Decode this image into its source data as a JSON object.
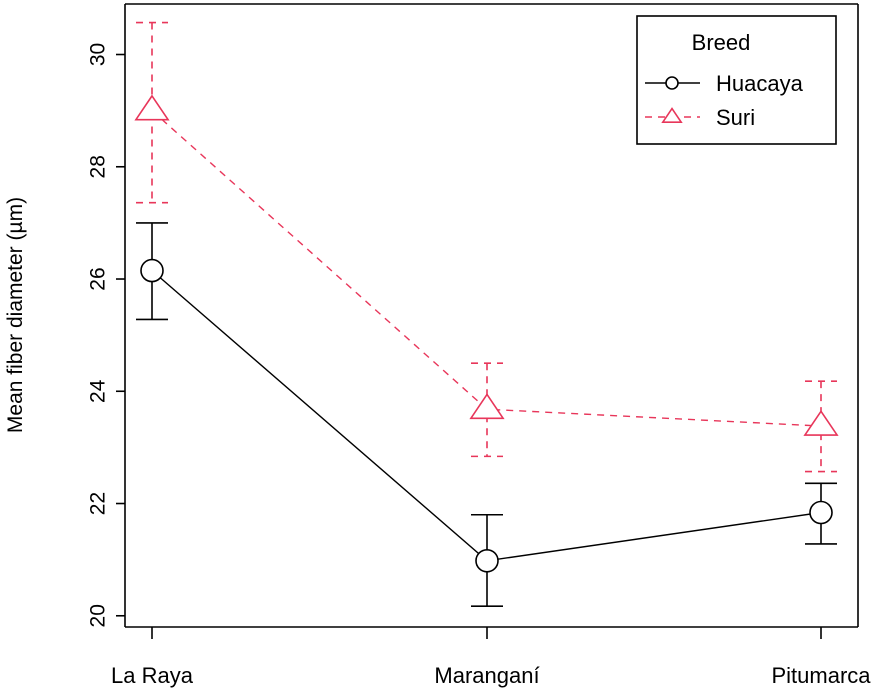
{
  "chart_data": {
    "type": "line",
    "title": "",
    "xlabel": "",
    "ylabel": "Mean fiber diameter (µm)",
    "categories": [
      "La Raya",
      "Maranganí",
      "Pitumarca"
    ],
    "ylim": [
      19.8,
      30.9
    ],
    "yticks": [
      20,
      22,
      24,
      26,
      28,
      30
    ],
    "legend": {
      "title": "Breed",
      "position": "top-right"
    },
    "series": [
      {
        "name": "Huacaya",
        "color": "#000000",
        "line_style": "solid",
        "marker": "circle",
        "values": [
          26.15,
          20.98,
          21.84
        ],
        "lower": [
          25.28,
          20.17,
          21.28
        ],
        "upper": [
          27.0,
          21.8,
          22.36
        ]
      },
      {
        "name": "Suri",
        "color": "#e8365a",
        "line_style": "dashed",
        "marker": "triangle",
        "values": [
          29.0,
          23.68,
          23.38
        ],
        "lower": [
          27.36,
          22.84,
          22.57
        ],
        "upper": [
          30.57,
          24.5,
          24.18
        ]
      }
    ]
  }
}
